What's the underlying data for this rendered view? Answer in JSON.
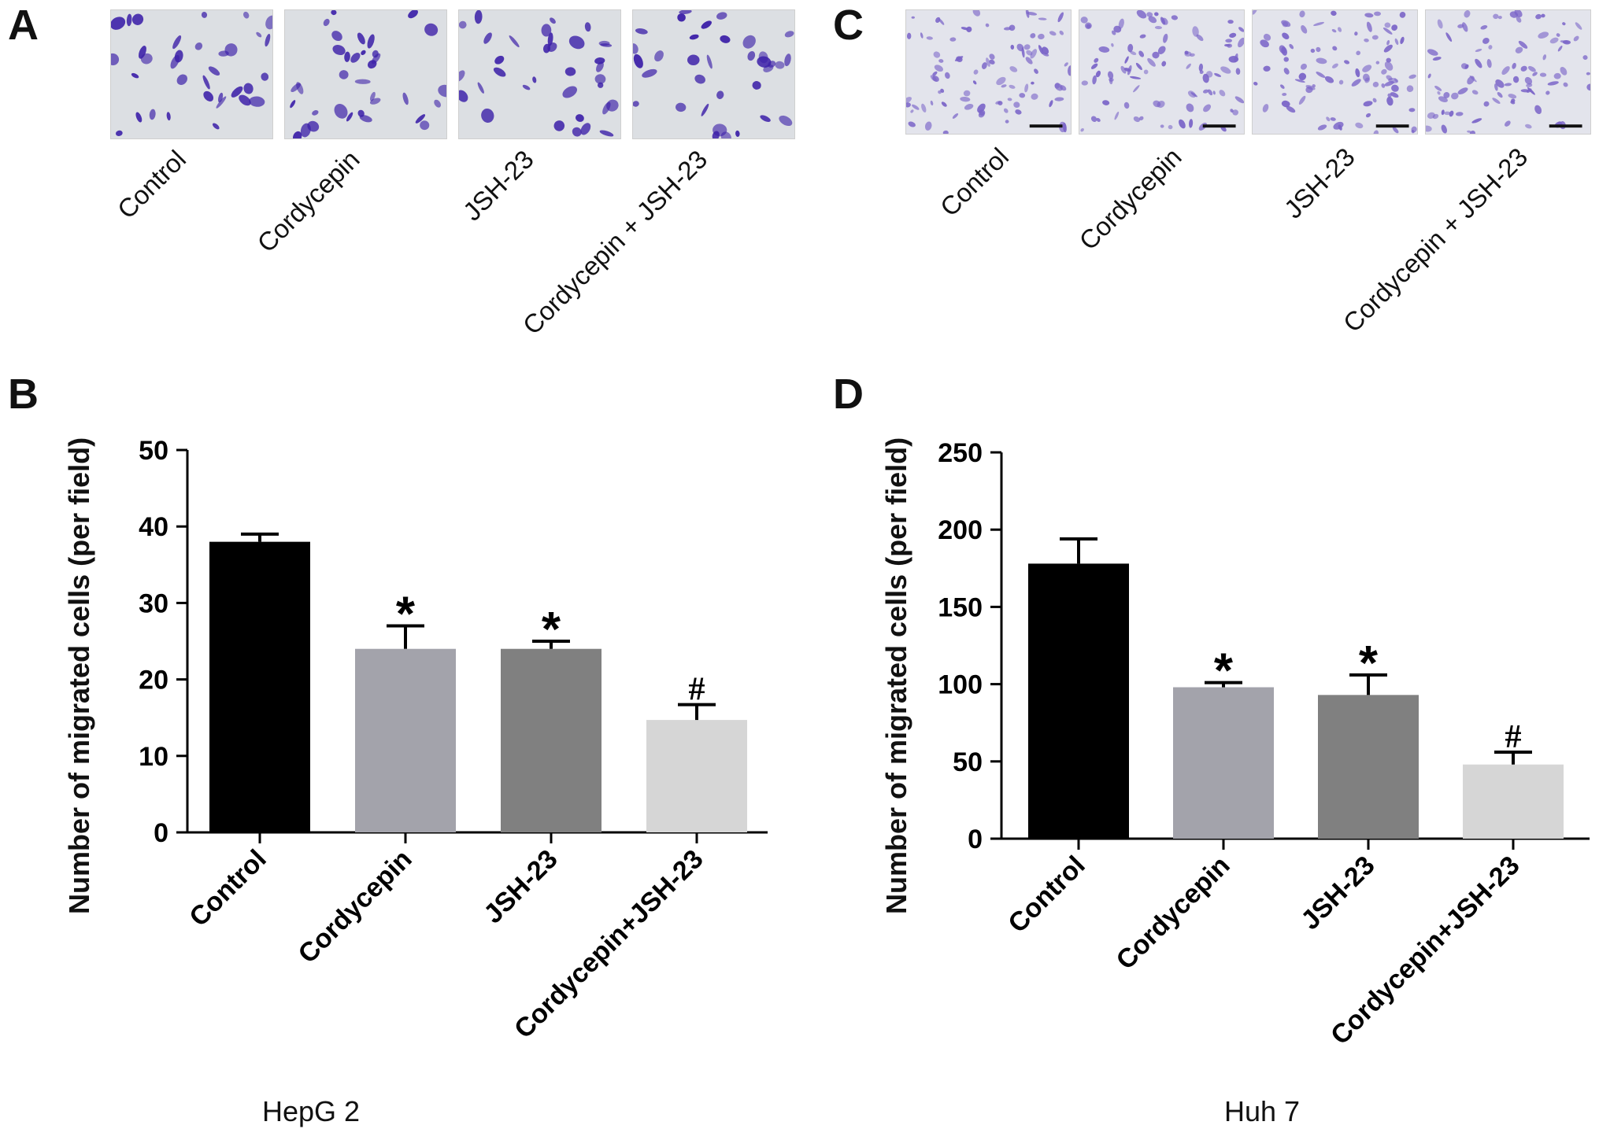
{
  "panels": {
    "a": {
      "letter": "A",
      "images": [
        "Control",
        "Cordycepin",
        "JSH-23",
        "Cordycepin + JSH-23"
      ]
    },
    "c": {
      "letter": "C",
      "images": [
        "Control",
        "Cordycepin",
        "JSH-23",
        "Cordycepin + JSH-23"
      ]
    },
    "b": {
      "letter": "B",
      "cell_line": "HepG 2"
    },
    "d": {
      "letter": "D",
      "cell_line": "Huh 7"
    }
  },
  "colors": {
    "control": "#000000",
    "cordycepin": "#a3a3ab",
    "jsh23": "#808080",
    "combo": "#d6d6d6",
    "stain_a": "#3b1fa8",
    "stain_c": "#7a64c8"
  },
  "chart_data": [
    {
      "panel": "B",
      "type": "bar",
      "categories": [
        "Control",
        "Cordycepin",
        "JSH-23",
        "Cordycepin+JSH-23"
      ],
      "values": [
        38,
        24,
        24,
        14.7
      ],
      "errors": [
        1,
        3,
        1,
        2
      ],
      "annotations": [
        "",
        "*",
        "*",
        "#"
      ],
      "ylabel": "Number of migrated cells (per field)",
      "xlabel": "HepG 2",
      "ylim": [
        0,
        50
      ],
      "yticks": [
        0,
        10,
        20,
        30,
        40,
        50
      ],
      "grid": false
    },
    {
      "panel": "D",
      "type": "bar",
      "categories": [
        "Control",
        "Cordycepin",
        "JSH-23",
        "Cordycepin+JSH-23"
      ],
      "values": [
        178,
        98,
        93,
        48
      ],
      "errors": [
        16,
        3,
        13,
        8
      ],
      "annotations": [
        "",
        "*",
        "*",
        "#"
      ],
      "ylabel": "Number of migrated cells (per field)",
      "xlabel": "Huh 7",
      "ylim": [
        0,
        250
      ],
      "yticks": [
        0,
        50,
        100,
        150,
        200,
        250
      ],
      "grid": false
    }
  ]
}
